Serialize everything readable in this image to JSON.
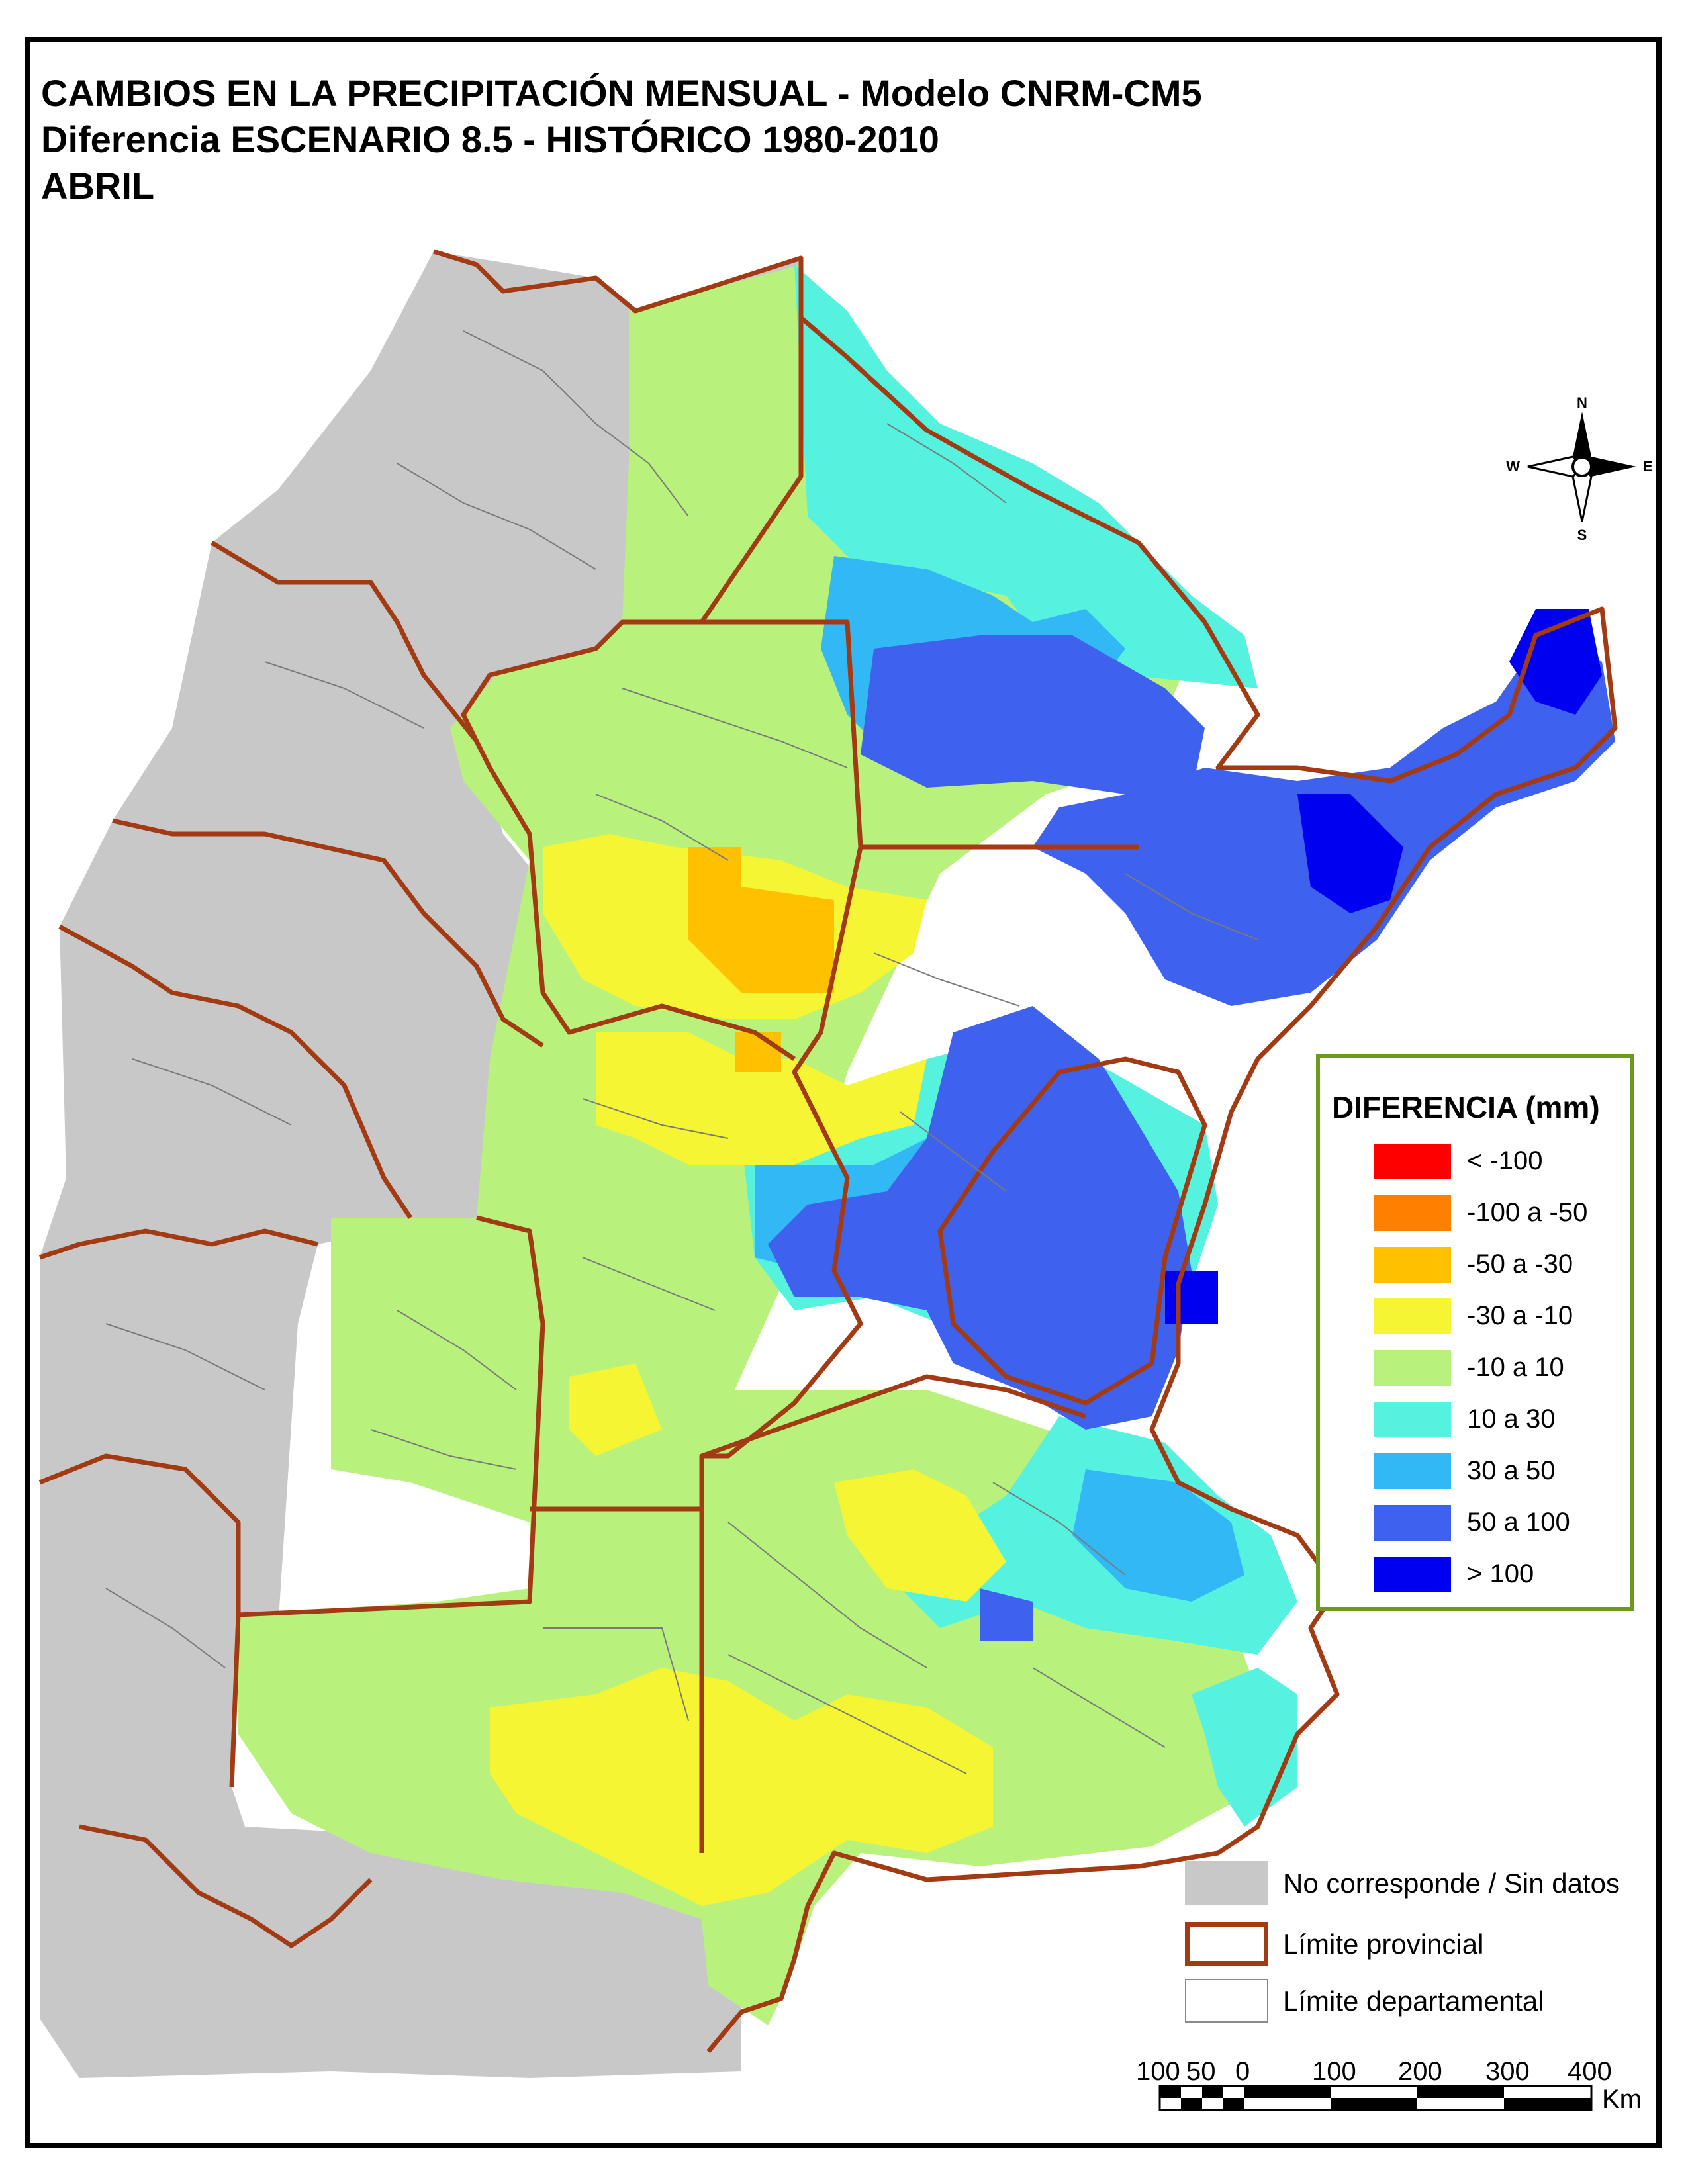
{
  "titles": {
    "line1": "CAMBIOS EN LA PRECIPITACIÓN MENSUAL - Modelo CNRM-CM5",
    "line2": "Diferencia ESCENARIO 8.5 - HISTÓRICO 1980-2010",
    "line3": "ABRIL"
  },
  "compass": {
    "n": "N",
    "s": "S",
    "e": "E",
    "w": "W"
  },
  "legend": {
    "title": "DIFERENCIA (mm)",
    "classes": [
      {
        "label": "< -100",
        "color": "#ff0000"
      },
      {
        "label": "-100 a -50",
        "color": "#ff7f00"
      },
      {
        "label": "-50 a -30",
        "color": "#ffc000"
      },
      {
        "label": "-30 a -10",
        "color": "#f5f534"
      },
      {
        "label": "-10 a 10",
        "color": "#b8f27c"
      },
      {
        "label": "10 a 30",
        "color": "#55f2e0"
      },
      {
        "label": "30 a 50",
        "color": "#32b8f5"
      },
      {
        "label": "50 a 100",
        "color": "#3f62ee"
      },
      {
        "label": "> 100",
        "color": "#0000f0"
      }
    ]
  },
  "map_key": {
    "no_data": {
      "label": "No corresponde / Sin datos",
      "color": "#c8c8c8"
    },
    "province_limit": {
      "label": "Límite provincial",
      "color": "#a23a14"
    },
    "department_limit": {
      "label": "Límite departamental",
      "color": "#8a8a8a"
    }
  },
  "scale_bar": {
    "labels": [
      "100",
      "50",
      "0",
      "100",
      "200",
      "300",
      "400"
    ],
    "unit": "Km"
  }
}
